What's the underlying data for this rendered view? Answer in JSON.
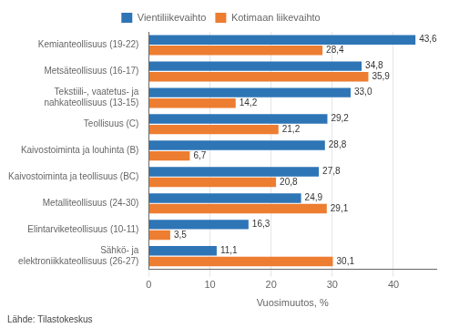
{
  "chart_data": {
    "type": "bar",
    "orientation": "horizontal",
    "categories": [
      "Kemianteollisuus (19-22)",
      "Metsäteollisuus (16-17)",
      "Tekstiili-, vaatetus- ja\nnahkateollisuus (13-15)",
      "Teollisuus (C)",
      "Kaivostoiminta ja louhinta (B)",
      "Kaivostoiminta ja teollisuus (BC)",
      "Metalliteollisuus (24-30)",
      "Elintarviketeollisuus (10-11)",
      "Sähkö- ja\nelektroniikkateollisuus (26-27)"
    ],
    "series": [
      {
        "name": "Vientiliikevaihto",
        "color": "#2E75B6",
        "values": [
          43.6,
          34.8,
          33.0,
          29.2,
          28.8,
          27.8,
          24.9,
          16.3,
          11.1
        ],
        "value_labels": [
          "43,6",
          "34,8",
          "33,0",
          "29,2",
          "28,8",
          "27,8",
          "24,9",
          "16,3",
          "11,1"
        ]
      },
      {
        "name": "Kotimaan liikevaihto",
        "color": "#ED7D31",
        "values": [
          28.4,
          35.9,
          14.2,
          21.2,
          6.7,
          20.8,
          29.1,
          3.5,
          30.1
        ],
        "value_labels": [
          "28,4",
          "35,9",
          "14,2",
          "21,2",
          "6,7",
          "20,8",
          "29,1",
          "3,5",
          "30,1"
        ]
      }
    ],
    "x_label": "Vuosimuutos, %",
    "xlim": [
      0,
      47
    ],
    "xticks": [
      0,
      10,
      20,
      30,
      40
    ],
    "grid": true,
    "legend": "top",
    "data_labels": true,
    "annotations": [
      "Lähde: Tilastokeskus"
    ]
  }
}
